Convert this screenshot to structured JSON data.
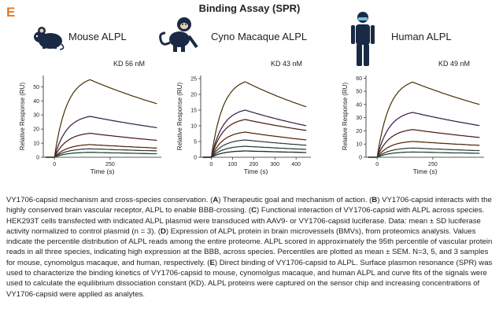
{
  "panel_letter": "E",
  "figure_title": "Binding Assay (SPR)",
  "species": [
    {
      "label": "Mouse ALPL",
      "kd": "KD 56 nM",
      "icon": "mouse-icon"
    },
    {
      "label": "Cyno Macaque ALPL",
      "kd": "KD 43 nM",
      "icon": "monkey-icon"
    },
    {
      "label": "Human ALPL",
      "kd": "KD 49 nM",
      "icon": "human-icon"
    }
  ],
  "chart_data": [
    {
      "type": "line",
      "title": "Mouse ALPL",
      "ylabel": "Relative Response (RU)",
      "xlabel": "Time (s)",
      "xlim": [
        -50,
        480
      ],
      "ylim": [
        0,
        58
      ],
      "xticks": [
        0,
        250
      ],
      "yticks": [
        0,
        10,
        20,
        30,
        40,
        50
      ],
      "inject_start": 0,
      "inject_end": 160,
      "series": [
        {
          "peak": 55,
          "end": 38
        },
        {
          "peak": 29,
          "end": 21
        },
        {
          "peak": 17,
          "end": 12
        },
        {
          "peak": 9,
          "end": 6.5
        },
        {
          "peak": 6,
          "end": 4.5
        },
        {
          "peak": 3.5,
          "end": 2.5
        }
      ]
    },
    {
      "type": "line",
      "title": "Cyno Macaque ALPL",
      "ylabel": "Relative Response (RU)",
      "xlabel": "Time (s)",
      "xlim": [
        -50,
        470
      ],
      "ylim": [
        0,
        26
      ],
      "xticks": [
        0,
        100,
        200,
        300,
        400
      ],
      "yticks": [
        0,
        5,
        10,
        15,
        20,
        25
      ],
      "inject_start": 0,
      "inject_end": 160,
      "series": [
        {
          "peak": 24,
          "end": 16
        },
        {
          "peak": 15,
          "end": 10
        },
        {
          "peak": 12,
          "end": 8.5
        },
        {
          "peak": 8,
          "end": 5.5
        },
        {
          "peak": 5.5,
          "end": 3.8
        },
        {
          "peak": 3.5,
          "end": 2.5
        },
        {
          "peak": 2,
          "end": 1.5
        }
      ]
    },
    {
      "type": "line",
      "title": "Human ALPL",
      "ylabel": "Relative Response (RU)",
      "xlabel": "Time (s)",
      "xlim": [
        -50,
        480
      ],
      "ylim": [
        0,
        62
      ],
      "xticks": [
        0,
        250
      ],
      "yticks": [
        0,
        10,
        20,
        30,
        40,
        50,
        60
      ],
      "inject_start": 0,
      "inject_end": 160,
      "series": [
        {
          "peak": 57,
          "end": 40
        },
        {
          "peak": 34,
          "end": 24
        },
        {
          "peak": 21,
          "end": 15
        },
        {
          "peak": 12,
          "end": 9
        },
        {
          "peak": 7,
          "end": 5
        },
        {
          "peak": 4,
          "end": 3
        }
      ]
    }
  ],
  "caption": {
    "p1": "VY1706-capsid mechanism and cross-species conservation. (",
    "A": "A",
    "p2": ") Therapeutic goal and mechanism of action. (",
    "B": "B",
    "p3": ") VY1706-capsid interacts with the highly conserved brain vascular receptor, ALPL to enable BBB-crossing. (",
    "C": "C",
    "p4": ") Functional interaction of VY1706-capsid with ALPL across species. HEK293T cells transfected with indicated ALPL plasmid were transduced with AAV9- or VY1706-capsid luciferase. Data: mean ± SD luciferase activity normalized to control plasmid (n = 3). (",
    "D": "D",
    "p5": ") Expression of ALPL protein in brain microvessels (BMVs), from proteomics analysis. Values indicate the percentile distribution of ALPL reads among the entire proteome. ALPL scored in  approximately the 95th percentile of vascular protein reads in all three species, indicating high expression at the BBB, across species. Percentiles are plotted as mean ± SEM. N=3, 5, and 3 samples for mouse, cynomolgus macaque, and human, respectively. (",
    "E": "E",
    "p6": ") Direct binding of VY1706-capsid to ALPL. Surface plasmon resonance (SPR) was used to characterize the binding kinetics of VY1706-capsid to mouse, cynomolgus macaque, and human ALPL and curve fits of the signals were used to calculate the equilibrium dissociation constant (KD). ALPL proteins were captured on the sensor chip and increasing concentrations of VY1706-capsid were applied as analytes."
  }
}
